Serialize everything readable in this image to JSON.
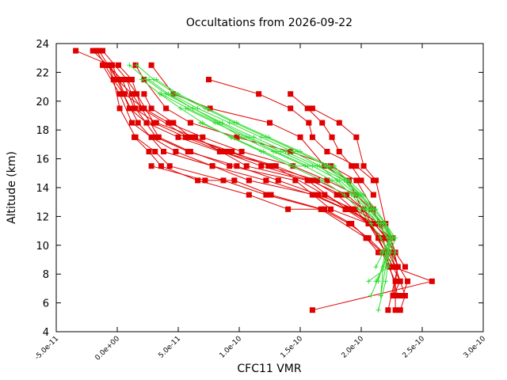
{
  "chart_data": {
    "type": "line",
    "title": "Occultations from 2026-09-22",
    "xlabel": "CFC11 VMR",
    "ylabel": "Altitude (km)",
    "xlim": [
      -5e-11,
      3e-10
    ],
    "ylim": [
      4,
      24
    ],
    "xticks": [
      {
        "value": -5e-11,
        "label": "-5.0e-11"
      },
      {
        "value": 0,
        "label": "0.0e+00"
      },
      {
        "value": 5e-11,
        "label": "5.0e-11"
      },
      {
        "value": 1e-10,
        "label": "1.0e-10"
      },
      {
        "value": 1.5e-10,
        "label": "1.5e-10"
      },
      {
        "value": 2e-10,
        "label": "2.0e-10"
      },
      {
        "value": 2.5e-10,
        "label": "2.5e-10"
      },
      {
        "value": 3e-10,
        "label": "3.0e-10"
      }
    ],
    "yticks": [
      {
        "value": 4,
        "label": "4"
      },
      {
        "value": 6,
        "label": "6"
      },
      {
        "value": 8,
        "label": "8"
      },
      {
        "value": 10,
        "label": "10"
      },
      {
        "value": 12,
        "label": "12"
      },
      {
        "value": 14,
        "label": "14"
      },
      {
        "value": 16,
        "label": "16"
      },
      {
        "value": 18,
        "label": "18"
      },
      {
        "value": 20,
        "label": "20"
      },
      {
        "value": 22,
        "label": "22"
      },
      {
        "value": 24,
        "label": "24"
      }
    ],
    "grid": false,
    "legend": "none",
    "colors": {
      "profiles": "#e00000",
      "reference": "#33dd33"
    },
    "series": [
      {
        "style": "profile",
        "x": [
          -1.7e-11,
          -3e-12,
          2e-12,
          1.5e-11,
          3.1e-11,
          4.3e-11,
          8.7e-11,
          1.22e-10,
          1.67e-10,
          2.04e-10,
          2.17e-10,
          2.28e-10,
          2.28e-10
        ],
        "y": [
          23.5,
          21.5,
          19.5,
          17.5,
          16.5,
          15.5,
          14.5,
          13.5,
          12.5,
          10.5,
          9.5,
          7.5,
          5.5
        ]
      },
      {
        "style": "profile",
        "x": [
          -1.2e-11,
          8e-12,
          1.5e-11,
          3.2e-11,
          5.8e-11,
          9.8e-11,
          1.32e-10,
          1.65e-10,
          1.95e-10,
          2.06e-10,
          2.2e-10,
          2.32e-10,
          2.26e-10
        ],
        "y": [
          23.5,
          21.5,
          19.5,
          17.5,
          16.5,
          15.5,
          14.5,
          13.5,
          12.5,
          11.5,
          9.5,
          7.5,
          6.5
        ]
      },
      {
        "style": "profile",
        "x": [
          -7e-12,
          -3e-12,
          5e-12,
          1.7e-11,
          3.8e-11,
          7.8e-11,
          1.08e-10,
          1.62e-10,
          1.88e-10,
          2.12e-10,
          2.24e-10,
          2.3e-10,
          2.22e-10
        ],
        "y": [
          22.5,
          21.5,
          20.5,
          18.5,
          16.5,
          15.5,
          14.5,
          13.5,
          12.5,
          11.5,
          10.5,
          8.5,
          5.5
        ]
      },
      {
        "style": "profile",
        "x": [
          1e-12,
          1.2e-11,
          2e-11,
          3.4e-11,
          6e-11,
          9.2e-11,
          1.46e-10,
          1.75e-10,
          2.06e-10,
          2.16e-10,
          2.28e-10,
          2.36e-10,
          2.32e-10
        ],
        "y": [
          22.5,
          21.5,
          19.5,
          17.5,
          16.5,
          15.5,
          14.5,
          12.5,
          11.5,
          10.5,
          8.5,
          6.5,
          5.5
        ]
      },
      {
        "style": "profile",
        "x": [
          -1.2e-11,
          2e-12,
          1.2e-11,
          2.8e-11,
          4.8e-11,
          7.8e-11,
          1.22e-10,
          1.6e-10,
          1.87e-10,
          2.06e-10,
          2.2e-10,
          2.3e-10
        ],
        "y": [
          22.5,
          20.5,
          18.5,
          17.5,
          16.5,
          15.5,
          14.5,
          13.5,
          12.5,
          11.5,
          9.5,
          6.5
        ]
      },
      {
        "style": "profile",
        "x": [
          1.5e-11,
          2.2e-11,
          4e-11,
          6e-11,
          9.8e-11,
          1.42e-10,
          1.75e-10,
          1.96e-10,
          2.1e-10,
          2.2e-10,
          2.28e-10
        ],
        "y": [
          22.5,
          21.5,
          19.5,
          18.5,
          17.5,
          16.5,
          15.5,
          14.5,
          12.5,
          10.5,
          8.5
        ]
      },
      {
        "style": "profile",
        "x": [
          2.8e-11,
          4.6e-11,
          7.6e-11,
          1.25e-10,
          1.5e-10,
          1.7e-10,
          1.9e-10,
          2.06e-10,
          2.18e-10,
          2.23e-10
        ],
        "y": [
          22.5,
          20.5,
          19.5,
          18.5,
          17.5,
          15.5,
          14.5,
          11.5,
          10.5,
          8.5
        ]
      },
      {
        "style": "profile",
        "x": [
          7.5e-11,
          1.16e-10,
          1.42e-10,
          1.57e-10,
          1.6e-10,
          1.72e-10,
          1.96e-10,
          2.1e-10
        ],
        "y": [
          21.5,
          20.5,
          19.5,
          18.5,
          17.5,
          16.5,
          15.5,
          14.5
        ]
      },
      {
        "style": "profile",
        "x": [
          1.42e-10,
          1.56e-10,
          1.68e-10,
          1.76e-10,
          1.82e-10,
          1.92e-10,
          2e-10,
          2.1e-10
        ],
        "y": [
          20.5,
          19.5,
          18.5,
          17.5,
          16.5,
          15.5,
          14.5,
          13.5
        ]
      },
      {
        "style": "profile",
        "x": [
          1.6e-10,
          1.82e-10,
          1.96e-10,
          2.02e-10,
          2.12e-10,
          2.2e-10,
          2.28e-10
        ],
        "y": [
          19.5,
          18.5,
          17.5,
          15.5,
          14.5,
          11.5,
          9.5
        ]
      },
      {
        "style": "profile",
        "x": [
          -3.4e-11,
          -6e-12,
          0.0,
          1.2e-11,
          2e-11,
          5.8e-11,
          9.4e-11,
          1.24e-10,
          1.64e-10,
          1.88e-10,
          2.02e-10,
          2.14e-10,
          2.26e-10,
          2.58e-10,
          1.6e-10
        ],
        "y": [
          23.5,
          22.5,
          21.5,
          20.5,
          19.5,
          17.5,
          16.5,
          15.5,
          14.5,
          13.5,
          12.5,
          10.5,
          8.5,
          7.5,
          5.5
        ]
      },
      {
        "style": "profile",
        "x": [
          -1.5e-11,
          0.0,
          1e-11,
          2.4e-11,
          5e-11,
          8.4e-11,
          1.28e-10,
          1.7e-10,
          1.92e-10,
          2.06e-10,
          2.24e-10,
          2.38e-10,
          2.34e-10
        ],
        "y": [
          23.5,
          21.5,
          19.5,
          18.5,
          17.5,
          16.5,
          15.5,
          13.5,
          12.5,
          11.5,
          9.5,
          7.5,
          6.5
        ]
      },
      {
        "style": "profile",
        "x": [
          -2e-11,
          -8e-12,
          4e-12,
          1.4e-11,
          3.2e-11,
          6.4e-11,
          1.06e-10,
          1.56e-10,
          1.88e-10,
          2.1e-10,
          2.22e-10,
          2.3e-10,
          2.26e-10
        ],
        "y": [
          23.5,
          22.5,
          21.5,
          19.5,
          18.5,
          17.5,
          15.5,
          14.5,
          12.5,
          11.5,
          10.5,
          8.5,
          6.5
        ]
      },
      {
        "style": "profile",
        "x": [
          -4e-12,
          6e-12,
          2.2e-11,
          4.2e-11,
          7e-11,
          1.02e-10,
          1.44e-10,
          1.72e-10,
          1.96e-10,
          2.08e-10,
          2.26e-10
        ],
        "y": [
          22.5,
          20.5,
          19.5,
          18.5,
          17.5,
          16.5,
          15.5,
          14.5,
          13.5,
          12.5,
          10.5
        ]
      },
      {
        "style": "profile",
        "x": [
          8e-12,
          1.6e-11,
          3e-11,
          5.6e-11,
          8.6e-11,
          1.18e-10,
          1.58e-10,
          1.84e-10,
          2.02e-10,
          2.2e-10,
          2.36e-10
        ],
        "y": [
          21.5,
          20.5,
          18.5,
          17.5,
          16.5,
          15.5,
          14.5,
          13.5,
          12.5,
          10.5,
          8.5
        ]
      },
      {
        "style": "profile",
        "x": [
          2.2e-11,
          2.8e-11,
          4.6e-11,
          6e-11,
          9e-11,
          1.3e-10,
          1.6e-10,
          1.8e-10,
          1.94e-10,
          2.16e-10,
          2.24e-10
        ],
        "y": [
          20.5,
          19.5,
          18.5,
          17.5,
          16.5,
          15.5,
          14.5,
          13.5,
          12.5,
          11.5,
          9.5
        ]
      },
      {
        "style": "profile",
        "x": [
          1.4e-11,
          2.6e-11,
          3.6e-11,
          6.6e-11,
          1.08e-10,
          1.4e-10,
          1.7e-10,
          1.92e-10,
          2.04e-10,
          2.14e-10
        ],
        "y": [
          17.5,
          16.5,
          15.5,
          14.5,
          13.5,
          12.5,
          12.5,
          11.5,
          10.5,
          9.5
        ]
      },
      {
        "style": "profile",
        "x": [
          2.8e-11,
          7.2e-11,
          9.6e-11,
          1.26e-10,
          1.68e-10,
          1.9e-10,
          2.06e-10,
          2.18e-10,
          2.24e-10
        ],
        "y": [
          15.5,
          14.5,
          14.5,
          13.5,
          12.5,
          11.5,
          10.5,
          9.5,
          8.5
        ]
      },
      {
        "style": "reference",
        "x": [
          2e-11,
          3.5e-11,
          5.2e-11,
          7e-11,
          9.3e-11,
          1.18e-10,
          1.42e-10,
          1.68e-10,
          1.86e-10,
          1.98e-10,
          2.08e-10,
          2.16e-10,
          2.23e-10,
          2.2e-10,
          2.14e-10
        ],
        "y": [
          21.5,
          20.5,
          19.5,
          18.5,
          17.5,
          16.5,
          15.5,
          14.5,
          13.5,
          12.5,
          11.5,
          10.5,
          9.5,
          7.5,
          5.5
        ]
      },
      {
        "style": "reference",
        "x": [
          3.2e-11,
          5e-11,
          7.4e-11,
          9.8e-11,
          1.24e-10,
          1.5e-10,
          1.74e-10,
          1.9e-10,
          2.02e-10,
          2.12e-10,
          2.2e-10,
          2.28e-10,
          2.24e-10,
          2.12e-10
        ],
        "y": [
          21.5,
          20.5,
          19.5,
          18.5,
          17.5,
          16.5,
          15.5,
          14.5,
          13.5,
          12.5,
          11.5,
          10.5,
          9.5,
          7.5
        ]
      },
      {
        "style": "reference",
        "x": [
          1e-11,
          2.4e-11,
          4e-11,
          6.2e-11,
          8.6e-11,
          1.12e-10,
          1.38e-10,
          1.64e-10,
          1.86e-10,
          1.99e-10,
          2.08e-10,
          2.18e-10,
          2.24e-10,
          2.2e-10,
          2.16e-10
        ],
        "y": [
          22.5,
          21.5,
          20.5,
          19.5,
          18.5,
          17.5,
          16.5,
          15.5,
          14.5,
          13.5,
          12.5,
          11.5,
          10.5,
          8.5,
          6.5
        ]
      },
      {
        "style": "reference",
        "x": [
          4.4e-11,
          6.6e-11,
          9.2e-11,
          1.18e-10,
          1.44e-10,
          1.66e-10,
          1.8e-10,
          1.92e-10,
          2.02e-10,
          2.14e-10,
          2.28e-10,
          2.22e-10,
          2.06e-10
        ],
        "y": [
          20.5,
          19.5,
          18.5,
          17.5,
          16.5,
          15.5,
          14.5,
          13.5,
          12.5,
          11.5,
          9.5,
          8.5,
          7.5
        ]
      },
      {
        "style": "reference",
        "x": [
          2.6e-11,
          4.2e-11,
          6.2e-11,
          8.4e-11,
          1.08e-10,
          1.34e-10,
          1.6e-10,
          1.82e-10,
          1.96e-10,
          2.06e-10,
          2.18e-10,
          2.26e-10,
          2.18e-10,
          2.08e-10
        ],
        "y": [
          21.5,
          20.5,
          19.5,
          18.5,
          17.5,
          16.5,
          15.5,
          14.5,
          13.5,
          12.5,
          11.5,
          10.5,
          8.5,
          6.5
        ]
      },
      {
        "style": "reference",
        "x": [
          5.6e-11,
          8e-11,
          1.06e-10,
          1.3e-10,
          1.56e-10,
          1.78e-10,
          1.88e-10,
          1.98e-10,
          2.1e-10,
          2.2e-10,
          2.26e-10,
          2.16e-10
        ],
        "y": [
          19.5,
          18.5,
          17.5,
          16.5,
          15.5,
          15.5,
          14.5,
          13.5,
          12.5,
          11.5,
          10.5,
          9.5
        ]
      },
      {
        "style": "reference",
        "x": [
          3.6e-11,
          5.8e-11,
          8.2e-11,
          1.02e-10,
          1.28e-10,
          1.54e-10,
          1.76e-10,
          1.94e-10,
          2.04e-10,
          2.14e-10,
          2.22e-10,
          2.2e-10,
          2.14e-10
        ],
        "y": [
          20.5,
          19.5,
          18.5,
          17.5,
          16.5,
          15.5,
          14.5,
          13.5,
          12.5,
          11.5,
          10.5,
          9.5,
          7.5
        ]
      },
      {
        "style": "reference",
        "x": [
          1.6e-11,
          3e-11,
          4.8e-11,
          7.2e-11,
          9.6e-11,
          1.22e-10,
          1.48e-10,
          1.72e-10,
          1.88e-10,
          2e-10,
          2.1e-10,
          2.2e-10,
          2.24e-10,
          2.18e-10,
          2.16e-10
        ],
        "y": [
          22.5,
          21.5,
          20.5,
          19.5,
          18.5,
          17.5,
          16.5,
          15.5,
          14.5,
          13.5,
          12.5,
          11.5,
          10.5,
          8.5,
          6.5
        ]
      },
      {
        "style": "reference",
        "x": [
          6.8e-11,
          9.4e-11,
          1.2e-10,
          1.46e-10,
          1.7e-10,
          1.86e-10,
          1.96e-10,
          2.06e-10,
          2.16e-10,
          2.24e-10,
          2.18e-10,
          2.12e-10
        ],
        "y": [
          18.5,
          17.5,
          16.5,
          15.5,
          15.5,
          14.5,
          13.5,
          12.5,
          11.5,
          10.5,
          9.5,
          8.5
        ]
      }
    ]
  }
}
